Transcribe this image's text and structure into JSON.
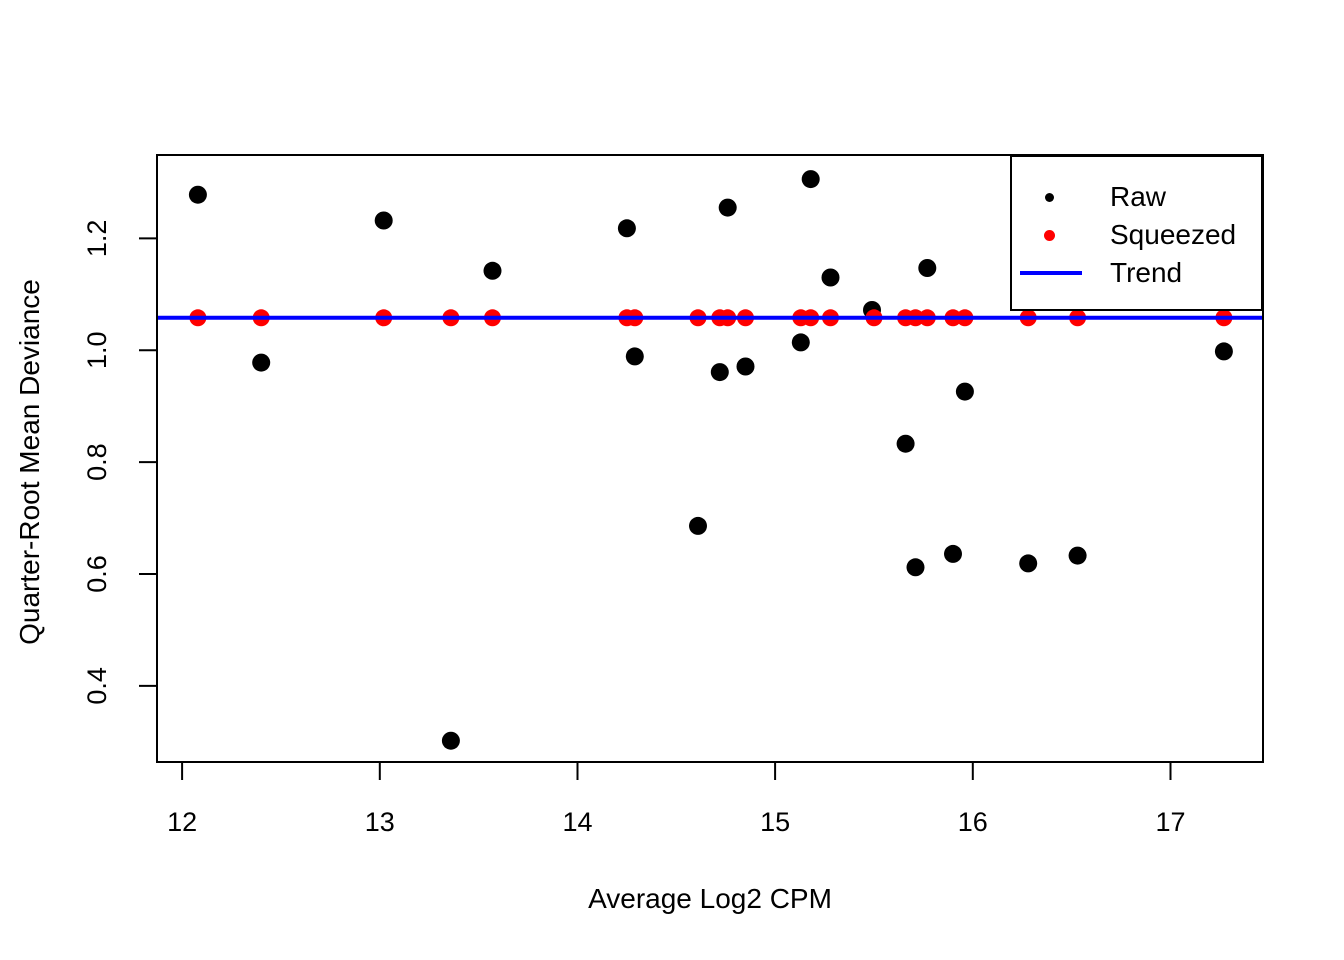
{
  "chart_data": {
    "type": "scatter",
    "title": "",
    "xlabel": "Average Log2 CPM",
    "ylabel": "Quarter-Root Mean Deviance",
    "xlim": [
      11.873,
      17.468
    ],
    "ylim": [
      0.264,
      1.349
    ],
    "grid": false,
    "x_ticks": [
      12,
      13,
      14,
      15,
      16,
      17
    ],
    "x_tick_labels": [
      "12",
      "13",
      "14",
      "15",
      "16",
      "17"
    ],
    "y_ticks": [
      0.4,
      0.6,
      0.8,
      1.0,
      1.2
    ],
    "y_tick_labels": [
      "0.4",
      "0.6",
      "0.8",
      "1.0",
      "1.2"
    ],
    "axis_color": "#000000",
    "series": [
      {
        "name": "Raw",
        "type": "points",
        "color": "#000000",
        "marker_radius": 9,
        "x": [
          12.08,
          12.4,
          13.02,
          13.36,
          13.57,
          14.25,
          14.29,
          14.61,
          14.72,
          14.76,
          14.85,
          15.13,
          15.18,
          15.28,
          15.49,
          15.66,
          15.71,
          15.77,
          15.9,
          15.96,
          16.28,
          16.53,
          17.27
        ],
        "y": [
          1.278,
          0.978,
          1.232,
          0.302,
          1.142,
          1.218,
          0.989,
          0.686,
          0.961,
          1.255,
          0.971,
          1.014,
          1.306,
          1.13,
          1.072,
          0.833,
          0.612,
          1.147,
          0.636,
          0.926,
          0.619,
          0.633,
          0.998
        ]
      },
      {
        "name": "Squeezed",
        "type": "points",
        "color": "#FF0000",
        "marker_radius": 8.5,
        "x": [
          12.08,
          12.4,
          13.02,
          13.36,
          13.57,
          14.25,
          14.29,
          14.61,
          14.72,
          14.76,
          14.85,
          15.13,
          15.18,
          15.28,
          15.5,
          15.66,
          15.71,
          15.77,
          15.9,
          15.96,
          16.28,
          16.53,
          17.27
        ],
        "y": [
          1.058,
          1.058,
          1.058,
          1.058,
          1.058,
          1.058,
          1.058,
          1.058,
          1.058,
          1.058,
          1.058,
          1.058,
          1.058,
          1.058,
          1.058,
          1.058,
          1.058,
          1.058,
          1.058,
          1.058,
          1.058,
          1.058,
          1.058
        ]
      },
      {
        "name": "Trend",
        "type": "hline",
        "color": "#0000FF",
        "y": 1.058,
        "line_width": 4
      }
    ],
    "legend": {
      "position": "topright",
      "entries": [
        {
          "label": "Raw",
          "symbol": "point",
          "color": "#000000"
        },
        {
          "label": "Squeezed",
          "symbol": "point",
          "color": "#FF0000"
        },
        {
          "label": "Trend",
          "symbol": "line",
          "color": "#0000FF"
        }
      ]
    }
  }
}
